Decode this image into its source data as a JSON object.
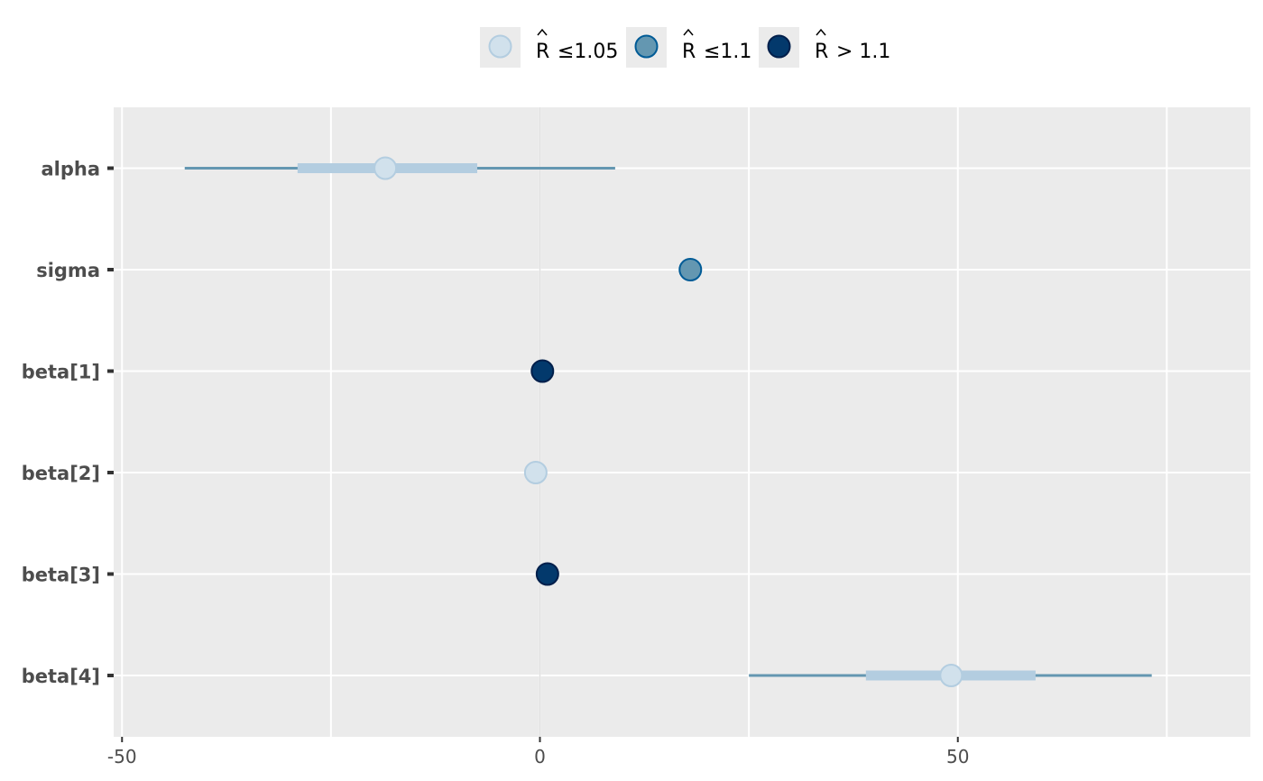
{
  "chart_data": {
    "type": "scatter",
    "title": "",
    "xlabel": "",
    "ylabel": "",
    "xlim": [
      -51,
      85
    ],
    "x_ticks": [
      -50,
      0,
      50
    ],
    "x_tick_labels": [
      "-50",
      "0",
      "50"
    ],
    "x_minor_ticks": [
      -25,
      25,
      75
    ],
    "grid": true,
    "legend_position": "top",
    "legend": [
      {
        "key": "low",
        "prefix": "R",
        "label": "≤1.05",
        "fill": "#d1e1ec",
        "stroke": "#b3cde0"
      },
      {
        "key": "mid",
        "prefix": "R",
        "label": "≤1.1",
        "fill": "#6497b1",
        "stroke": "#005b96"
      },
      {
        "key": "high",
        "prefix": "R",
        "label": "> 1.1",
        "fill": "#03396c",
        "stroke": "#011f4b"
      }
    ],
    "parameters": [
      {
        "name": "alpha",
        "estimate": -18.5,
        "inner": [
          -29,
          -7.5
        ],
        "outer": [
          -42.5,
          9
        ],
        "rhat": "low"
      },
      {
        "name": "sigma",
        "estimate": 18,
        "inner": [
          17.5,
          18.5
        ],
        "outer": [
          17.5,
          18.5
        ],
        "rhat": "mid"
      },
      {
        "name": "beta[1]",
        "estimate": 0.3,
        "inner": [
          0.3,
          0.3
        ],
        "outer": [
          0.3,
          0.3
        ],
        "rhat": "high"
      },
      {
        "name": "beta[2]",
        "estimate": -0.5,
        "inner": [
          -0.5,
          -0.5
        ],
        "outer": [
          -0.5,
          -0.5
        ],
        "rhat": "low"
      },
      {
        "name": "beta[3]",
        "estimate": 0.9,
        "inner": [
          0.9,
          0.9
        ],
        "outer": [
          0.9,
          0.9
        ],
        "rhat": "high"
      },
      {
        "name": "beta[4]",
        "estimate": 49.2,
        "inner": [
          39,
          59.3
        ],
        "outer": [
          25,
          73.2
        ],
        "rhat": "low"
      }
    ],
    "colors": {
      "panel_background": "#ebebeb",
      "grid_major": "#ffffff",
      "vline_zero": "#e0e0e0",
      "outer_interval": "#6497b1",
      "inner_interval": "#b3cde0",
      "legend_key_background": "#ebebeb",
      "tick_color": "#333333"
    }
  }
}
